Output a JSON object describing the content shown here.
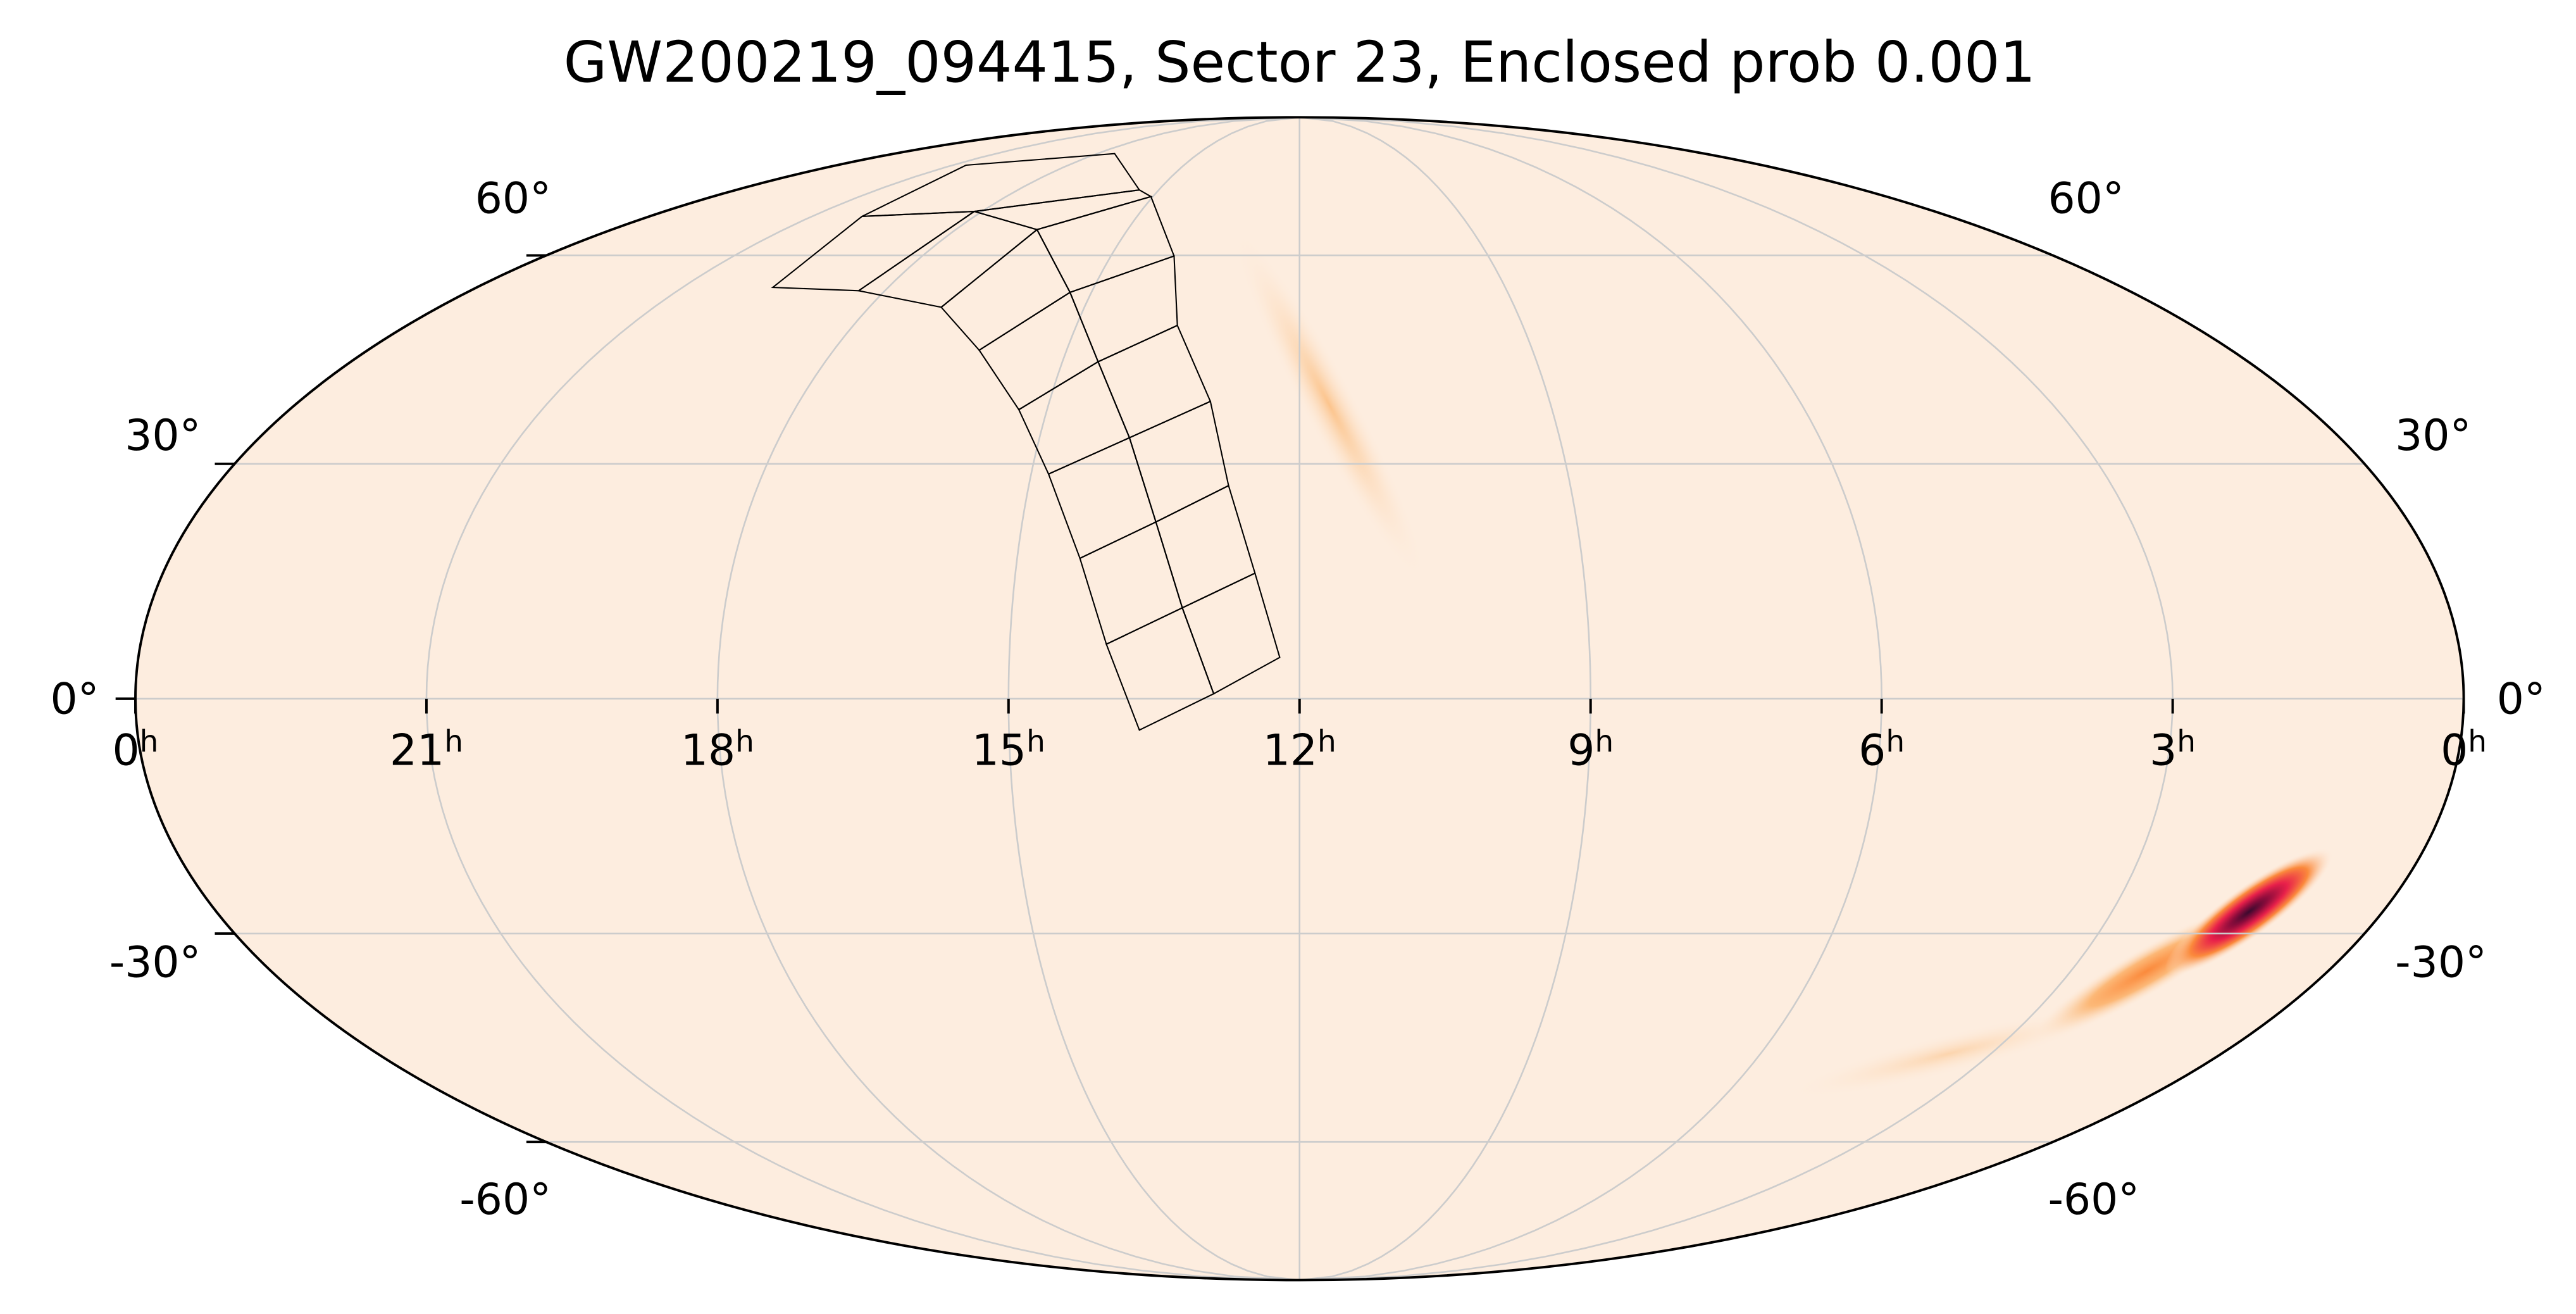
{
  "chart_data": {
    "type": "mollweide",
    "title": "GW200219_094415, Sector 23, Enclosed prob 0.001",
    "ra_unit": "h",
    "xlim": [
      24,
      0
    ],
    "xticks": [
      {
        "value": 24,
        "label": "0"
      },
      21,
      18,
      15,
      12,
      9,
      6,
      3,
      0
    ],
    "ylim": [
      -90,
      90
    ],
    "yticks": [
      {
        "value": -60,
        "label": "-60°"
      },
      {
        "value": -30,
        "label": "-30°"
      },
      {
        "value": 0,
        "label": "0°"
      },
      {
        "value": 30,
        "label": "30°"
      },
      {
        "value": 60,
        "label": "60°"
      }
    ],
    "grid": true
  }
}
